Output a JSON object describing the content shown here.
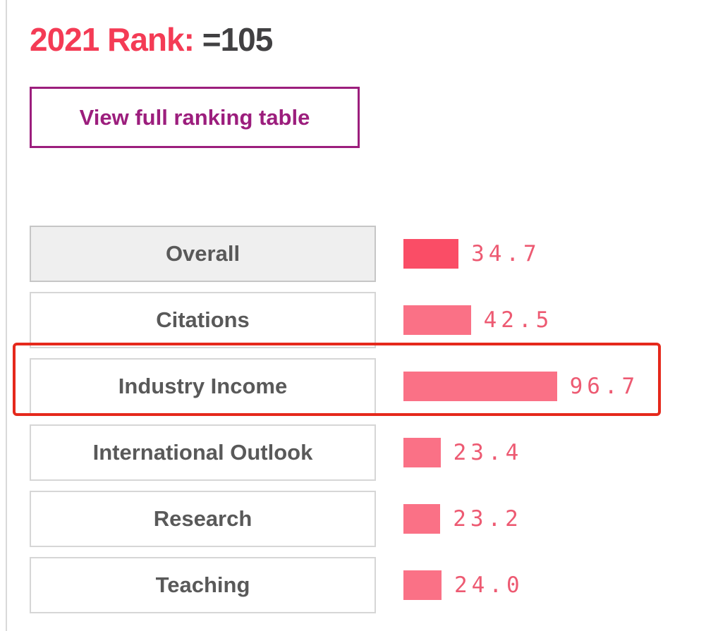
{
  "header": {
    "year_rank_label": "2021 Rank:",
    "rank_value": "=105"
  },
  "actions": {
    "view_full_ranking_label": "View full ranking table"
  },
  "chart_data": {
    "type": "bar",
    "orientation": "horizontal",
    "categories": [
      "Overall",
      "Citations",
      "Industry Income",
      "International Outlook",
      "Research",
      "Teaching"
    ],
    "values": [
      34.7,
      42.5,
      96.7,
      23.4,
      23.2,
      24.0
    ],
    "value_labels": [
      "34.7",
      "42.5",
      "96.7",
      "23.4",
      "23.2",
      "24.0"
    ],
    "xlim": [
      0,
      100
    ],
    "selected_category": "Overall",
    "highlighted_category": "Industry Income",
    "grid": false,
    "legend": false
  },
  "colors": {
    "accent_red": "#f43b55",
    "rank_text": "#414042",
    "button_purple": "#9c1e7d",
    "bar_primary": "#fa4d66",
    "bar_secondary": "#fa7186",
    "value_text": "#ed5a72",
    "highlight_ring": "#e5291c",
    "selected_box_bg": "#efefef",
    "label_text": "#595959"
  }
}
